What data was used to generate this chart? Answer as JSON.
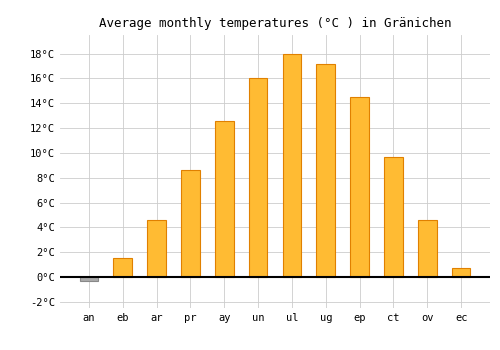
{
  "title": "Average monthly temperatures (°C ) in Gränichen",
  "month_labels": [
    "an",
    "eb",
    "ar",
    "pr",
    "ay",
    "un",
    "ul",
    "ug",
    "ep",
    "ct",
    "ov",
    "ec"
  ],
  "values": [
    -0.3,
    1.5,
    4.6,
    8.6,
    12.6,
    16.0,
    18.0,
    17.2,
    14.5,
    9.7,
    4.6,
    0.7
  ],
  "bar_color_face": "#FFBB33",
  "bar_color_edge": "#E08000",
  "bar_color_negative_face": "#AAAAAA",
  "bar_color_negative_edge": "#888888",
  "ylim": [
    -2.5,
    19.5
  ],
  "ytick_vals": [
    -2,
    0,
    2,
    4,
    6,
    8,
    10,
    12,
    14,
    16,
    18
  ],
  "background_color": "#ffffff",
  "grid_color": "#cccccc",
  "title_fontsize": 9,
  "tick_fontsize": 7.5,
  "bar_width": 0.55
}
